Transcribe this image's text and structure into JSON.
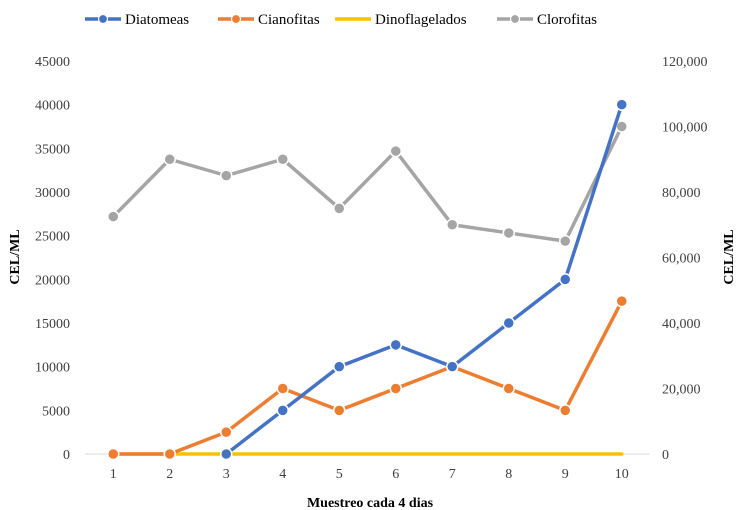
{
  "chart_data": {
    "type": "line",
    "title": "",
    "xlabel": "Muestreo cada 4 dias",
    "ylabel": "CEL/ML",
    "y2label": "CEL/ML",
    "categories": [
      "1",
      "2",
      "3",
      "4",
      "5",
      "6",
      "7",
      "8",
      "9",
      "10"
    ],
    "ylim": [
      0,
      45000
    ],
    "y2lim": [
      0,
      120000
    ],
    "y_ticks": [
      "0",
      "5000",
      "10000",
      "15000",
      "20000",
      "25000",
      "30000",
      "35000",
      "40000",
      "45000"
    ],
    "y2_ticks": [
      "0",
      "20,000",
      "40,000",
      "60,000",
      "80,000",
      "100,000",
      "120,000"
    ],
    "legend_position": "top",
    "grid": false,
    "series": [
      {
        "name": "Diatomeas",
        "axis": "left",
        "color": "#4472C4",
        "marker": true,
        "values": [
          null,
          null,
          0,
          5000,
          10000,
          12500,
          10000,
          15000,
          20000,
          40000
        ]
      },
      {
        "name": "Cianofitas",
        "axis": "left",
        "color": "#ED7D31",
        "marker": true,
        "values": [
          0,
          0,
          2500,
          7500,
          5000,
          7500,
          10000,
          7500,
          5000,
          17500
        ]
      },
      {
        "name": "Dinoflagelados",
        "axis": "left",
        "color": "#FFC000",
        "marker": false,
        "values": [
          0,
          0,
          0,
          0,
          0,
          0,
          0,
          0,
          0,
          0
        ]
      },
      {
        "name": "Clorofitas",
        "axis": "right",
        "color": "#A5A5A5",
        "marker": true,
        "values": [
          72500,
          90000,
          85000,
          90000,
          75000,
          92500,
          70000,
          67500,
          65000,
          100000
        ]
      }
    ]
  }
}
